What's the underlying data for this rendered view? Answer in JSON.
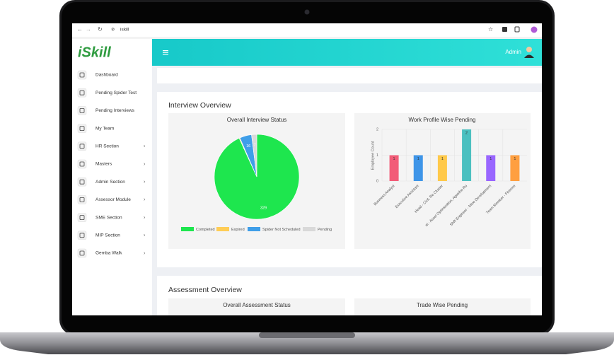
{
  "browser": {
    "url": "iskill"
  },
  "logo": "iSkill",
  "header": {
    "user": "Admin"
  },
  "sidebar": {
    "items": [
      {
        "label": "Dashboard",
        "has_submenu": false
      },
      {
        "label": "Pending Spider Test",
        "has_submenu": false
      },
      {
        "label": "Pending Interviews",
        "has_submenu": false
      },
      {
        "label": "My Team",
        "has_submenu": false
      },
      {
        "label": "HR Section",
        "has_submenu": true
      },
      {
        "label": "Masters",
        "has_submenu": true
      },
      {
        "label": "Admin Section",
        "has_submenu": true
      },
      {
        "label": "Assessor Module",
        "has_submenu": true
      },
      {
        "label": "SME Section",
        "has_submenu": true
      },
      {
        "label": "MIP Section",
        "has_submenu": true
      },
      {
        "label": "Gemba Walk",
        "has_submenu": true
      }
    ]
  },
  "interview_overview": {
    "title": "Interview Overview",
    "status_chart": {
      "type": "pie",
      "title": "Overall Interview Status",
      "categories": [
        "Completed",
        "Expired",
        "Spider Not Scheduled",
        "Pending"
      ],
      "values": [
        329,
        1,
        16,
        7
      ],
      "colors": [
        "#1ee64e",
        "#ffcd56",
        "#3f9ee8",
        "#d9d9d9"
      ]
    },
    "profile_chart": {
      "type": "bar",
      "title": "Work Profile Wise Pending",
      "y_label": "Employee Count",
      "categories": [
        "Business Analyst",
        "Executive Assistant",
        "Head - Civil, Re Cluster",
        "al - Asset Optimization, Agastha Ru",
        "Shift Engineer - Mine Development",
        "Team Member - Finance"
      ],
      "values": [
        1,
        1,
        1,
        2,
        1,
        1
      ],
      "colors": [
        "#f25c78",
        "#3e95e8",
        "#ffc94a",
        "#4bc0c0",
        "#9966ff",
        "#ff9f40"
      ],
      "ylim": [
        0,
        2
      ],
      "yticks": [
        0,
        1,
        2
      ],
      "grid": true
    }
  },
  "assessment_overview": {
    "title": "Assessment Overview",
    "status_chart": {
      "title": "Overall Assessment Status"
    },
    "trade_chart": {
      "title": "Trade Wise Pending"
    }
  }
}
